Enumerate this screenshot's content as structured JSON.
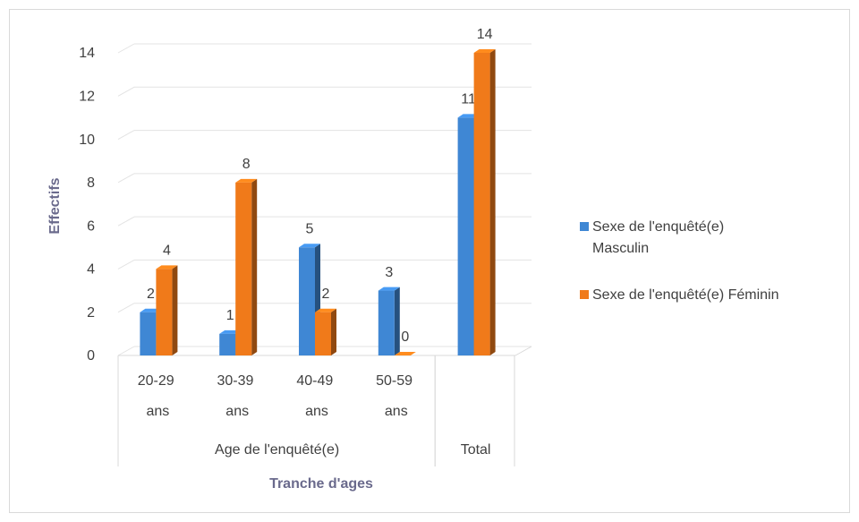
{
  "chart_data": {
    "type": "bar3d",
    "categories": [
      "20-29 ans",
      "30-39 ans",
      "40-49 ans",
      "50-59 ans",
      null
    ],
    "category_groups": [
      {
        "label": "Age de l'enquêté(e)",
        "span": 4
      },
      {
        "label": "Total",
        "span": 1
      }
    ],
    "series": [
      {
        "name": "Sexe de l'enquêté(e) Masculin",
        "color": "#3f87d4",
        "values": [
          2,
          1,
          5,
          3,
          11
        ]
      },
      {
        "name": "Sexe de l'enquêté(e) Féminin",
        "color": "#f07a1a",
        "values": [
          4,
          8,
          2,
          0,
          14
        ]
      }
    ],
    "ylim": [
      0,
      14
    ],
    "yticks": [
      0,
      2,
      4,
      6,
      8,
      10,
      12,
      14
    ],
    "y_label": "Effectifs",
    "x_label": "Tranche d'ages",
    "grid": true,
    "legend": "right"
  }
}
